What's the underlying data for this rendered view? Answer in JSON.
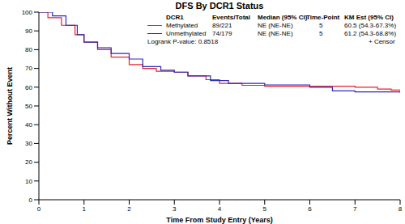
{
  "chart_data": {
    "type": "line",
    "title": "DFS By DCR1 Status",
    "x_label": "Time From Study Entry (Years)",
    "y_label": "Percent Without Event",
    "xlim": [
      0,
      8
    ],
    "xticks": [
      0,
      1,
      2,
      3,
      4,
      5,
      6,
      7,
      8
    ],
    "ylim": [
      0,
      100
    ],
    "yticks": [
      0,
      10,
      20,
      30,
      40,
      50,
      60,
      70,
      80,
      90,
      100
    ],
    "grid": false,
    "line_style": "step",
    "legend_table": {
      "columns": [
        "DCR1",
        "Events/Total",
        "Median (95% CI)",
        "Time-Point",
        "KM Est (95% CI)"
      ],
      "footer": "Logrank P-value: 0.8518",
      "censor_label": "+ Censor"
    },
    "series": [
      {
        "name": "Methylated",
        "color": "#e8202a",
        "events_total": "89/221",
        "median": "NE (NE-NE)",
        "time_point": "5",
        "km_est": "60.5 (54.3-67.3%)",
        "x": [
          0,
          0.2,
          0.5,
          0.8,
          1.0,
          1.3,
          1.6,
          2.0,
          2.3,
          2.6,
          3.0,
          3.3,
          3.7,
          4.0,
          4.5,
          5.0,
          7.0,
          7.5,
          7.8,
          8.0
        ],
        "values": [
          100,
          97,
          93,
          88,
          84,
          80,
          76,
          72,
          70,
          68.5,
          68,
          66,
          64,
          62,
          61,
          60.5,
          60,
          59,
          58.5,
          58
        ]
      },
      {
        "name": "Unmethylated",
        "color": "#2a2ab8",
        "events_total": "74/179",
        "median": "NE (NE-NE)",
        "time_point": "5",
        "km_est": "61.2 (54.3-68.8%)",
        "x": [
          0,
          0.3,
          0.6,
          0.85,
          1.0,
          1.3,
          1.6,
          2.0,
          2.3,
          2.7,
          3.0,
          3.3,
          3.8,
          4.2,
          5.0,
          6.0,
          6.5,
          7.0,
          8.0
        ],
        "values": [
          100,
          98,
          93,
          88,
          84,
          81,
          78,
          75,
          71,
          69,
          68,
          66,
          63.5,
          62,
          61.2,
          60,
          58,
          57.5,
          57
        ]
      }
    ]
  }
}
